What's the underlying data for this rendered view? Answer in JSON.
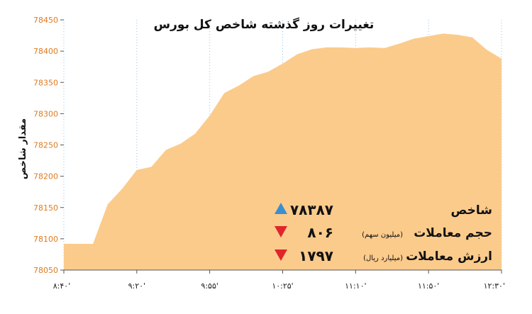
{
  "chart_data": {
    "type": "area",
    "title": "تغییرات روز گذشته شاخص کل بورس",
    "ylabel": "مقدار شاخص",
    "xlabel": "",
    "ylim": [
      78050,
      78450
    ],
    "yticks": [
      78050,
      78100,
      78150,
      78200,
      78250,
      78300,
      78350,
      78400,
      78450
    ],
    "xticks": [
      "۸:۴۰'",
      "۹:۲۰'",
      "۹:۵۵'",
      "۱۰:۲۵'",
      "۱۱:۱۰'",
      "۱۱:۵۰'",
      "۱۲:۳۰'"
    ],
    "grid": "vertical-dotted",
    "fill_color": "#fbcb8c",
    "y": [
      78092,
      78092,
      78092,
      78155,
      78180,
      78210,
      78215,
      78242,
      78252,
      78268,
      78297,
      78333,
      78345,
      78360,
      78367,
      78380,
      78395,
      78403,
      78406,
      78406,
      78405,
      78406,
      78405,
      78412,
      78420,
      78424,
      78428,
      78426,
      78422,
      78402,
      78388
    ]
  },
  "stats": [
    {
      "label": "شاخص",
      "sub": "",
      "value": "۷۸۳۸۷",
      "direction": "up",
      "color": "#3a8fd1"
    },
    {
      "label": "حجم معاملات",
      "sub": "(میلیون سهم)",
      "value": "۸۰۶",
      "direction": "down",
      "color": "#e0262a"
    },
    {
      "label": "ارزش معاملات",
      "sub": "(میلیارد ریال)",
      "value": "۱۷۹۷",
      "direction": "down",
      "color": "#e0262a"
    }
  ]
}
